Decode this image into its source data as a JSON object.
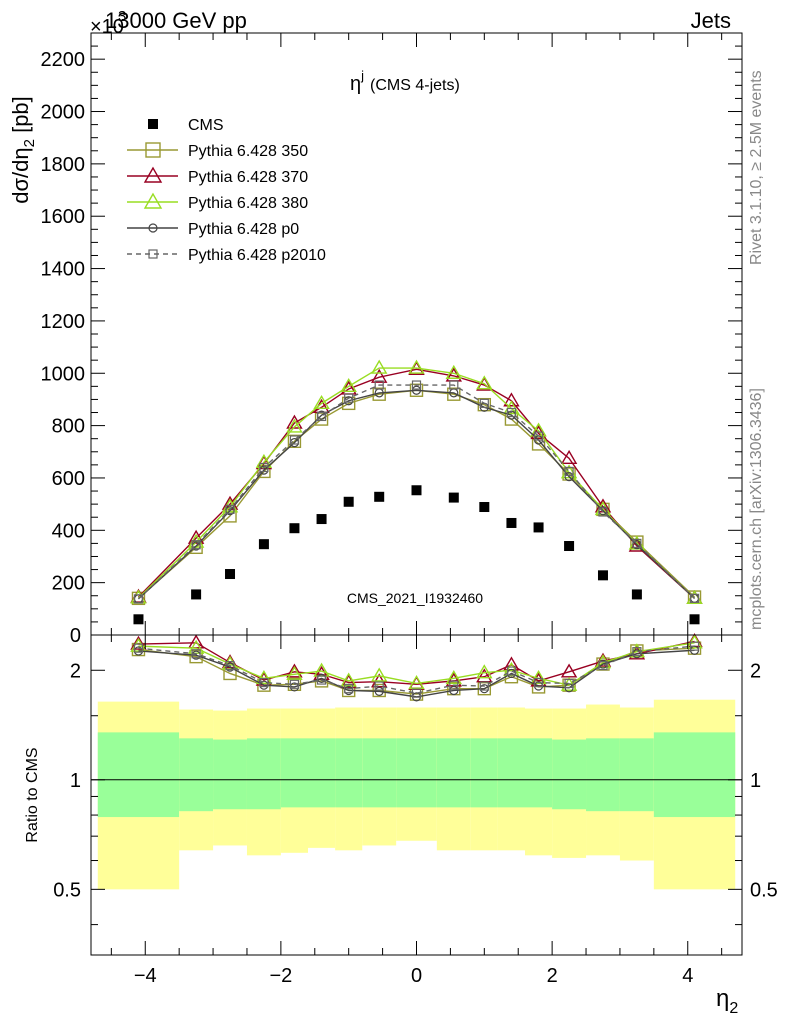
{
  "header": {
    "left": "13000 GeV pp",
    "right": "Jets",
    "exponent_prefix": "×10",
    "exponent_power": "3"
  },
  "side_text": {
    "top": "Rivet 3.1.10, ≥ 2.5M events",
    "bottom": "mcplots.cern.ch [arXiv:1306.3436]"
  },
  "watermark": "CMS_2021_I1932460",
  "colors": {
    "cms": "#000000",
    "p350": "#999933",
    "p370": "#990022",
    "p380": "#99dd22",
    "p0": "#444444",
    "p2010": "#666666",
    "band_inner": "#99ff99",
    "band_outer": "#ffff99"
  },
  "chart_data": [
    {
      "type": "scatter",
      "panel": "main",
      "title_main": "η",
      "title_sup": "j",
      "title_rest": "(CMS 4-jets)",
      "xlabel": "",
      "ylabel_parts": [
        "dσ/dη",
        "2",
        " [pb]"
      ],
      "ylabel": "dσ/dη2 [pb]",
      "xlim": [
        -4.8,
        4.8
      ],
      "ylim": [
        0,
        2300
      ],
      "y_scale_note": "×10^3",
      "yticks": [
        200,
        400,
        600,
        800,
        1000,
        1200,
        1400,
        1600,
        1800,
        2000,
        2200
      ],
      "ytick_labels": [
        "200",
        "400",
        "600",
        "800",
        "1000",
        "1200",
        "1400",
        "1600",
        "1800",
        "2000",
        "2200"
      ],
      "y0_label": "0",
      "x_bins": [
        -4.7,
        -3.5,
        -3.0,
        -2.5,
        -2.0,
        -1.6,
        -1.2,
        -0.8,
        -0.3,
        0.3,
        0.8,
        1.2,
        1.6,
        2.0,
        2.5,
        3.0,
        3.5,
        4.7
      ],
      "x": [
        -4.1,
        -3.25,
        -2.75,
        -2.25,
        -1.8,
        -1.4,
        -1.0,
        -0.55,
        0.0,
        0.55,
        1.0,
        1.4,
        1.8,
        2.25,
        2.75,
        3.25,
        4.1
      ],
      "legend_position": "top-left",
      "series": [
        {
          "name": "CMS",
          "key": "cms",
          "marker": "filled-square",
          "line": "none",
          "values": [
            60,
            155,
            233,
            347,
            408,
            443,
            509,
            528,
            553,
            525,
            489,
            428,
            411,
            340,
            228,
            155,
            60
          ]
        },
        {
          "name": "Pythia 6.428 350",
          "key": "p350",
          "marker": "open-square",
          "line": "solid",
          "values": [
            140,
            335,
            455,
            625,
            740,
            825,
            885,
            920,
            935,
            920,
            880,
            825,
            730,
            615,
            480,
            355,
            145
          ]
        },
        {
          "name": "Pythia 6.428 370",
          "key": "p370",
          "marker": "open-triangle",
          "line": "solid",
          "values": [
            145,
            370,
            500,
            655,
            810,
            870,
            940,
            985,
            1015,
            990,
            955,
            895,
            770,
            675,
            490,
            340,
            140
          ]
        },
        {
          "name": "Pythia 6.428 380",
          "key": "p380",
          "marker": "open-triangle",
          "line": "solid",
          "values": [
            142,
            355,
            490,
            660,
            795,
            885,
            950,
            1020,
            1020,
            1000,
            960,
            865,
            780,
            620,
            480,
            348,
            140
          ]
        },
        {
          "name": "Pythia 6.428 p0",
          "key": "p0",
          "marker": "open-circle",
          "line": "solid",
          "values": [
            138,
            340,
            475,
            630,
            735,
            840,
            895,
            925,
            935,
            925,
            870,
            840,
            745,
            605,
            475,
            345,
            140
          ]
        },
        {
          "name": "Pythia 6.428 p2010",
          "key": "p2010",
          "marker": "open-square-small",
          "line": "dashed",
          "values": [
            138,
            345,
            480,
            640,
            745,
            835,
            905,
            955,
            955,
            955,
            885,
            850,
            760,
            625,
            470,
            350,
            140
          ]
        }
      ]
    },
    {
      "type": "line",
      "panel": "ratio",
      "xlabel": "η",
      "xlabel_sub": "2",
      "ylabel": "Ratio to CMS",
      "xlim": [
        -4.8,
        4.8
      ],
      "ylim": [
        0.33,
        2.5
      ],
      "yticks": [
        0.5,
        1,
        2
      ],
      "ytick_labels": [
        "0.5",
        "1",
        "2"
      ],
      "xticks": [
        -4,
        -2,
        0,
        2,
        4
      ],
      "xtick_labels": [
        "−4",
        "−2",
        "0",
        "2",
        "4"
      ],
      "reference_line": 1,
      "bands": {
        "edges": [
          -4.7,
          -3.5,
          -3.0,
          -2.5,
          -2.0,
          -1.6,
          -1.2,
          -0.8,
          -0.3,
          0.3,
          0.8,
          1.2,
          1.6,
          2.0,
          2.5,
          3.0,
          3.5,
          4.7
        ],
        "inner_low": [
          0.79,
          0.82,
          0.83,
          0.83,
          0.84,
          0.84,
          0.84,
          0.84,
          0.84,
          0.84,
          0.84,
          0.84,
          0.84,
          0.83,
          0.82,
          0.82,
          0.79
        ],
        "inner_high": [
          1.35,
          1.3,
          1.29,
          1.3,
          1.3,
          1.3,
          1.3,
          1.3,
          1.3,
          1.3,
          1.3,
          1.3,
          1.3,
          1.29,
          1.3,
          1.3,
          1.35
        ],
        "outer_low": [
          0.5,
          0.64,
          0.66,
          0.62,
          0.63,
          0.65,
          0.64,
          0.66,
          0.68,
          0.64,
          0.64,
          0.64,
          0.62,
          0.61,
          0.62,
          0.6,
          0.5
        ],
        "outer_high": [
          1.64,
          1.56,
          1.55,
          1.57,
          1.57,
          1.57,
          1.58,
          1.58,
          1.58,
          1.58,
          1.58,
          1.58,
          1.57,
          1.57,
          1.61,
          1.58,
          1.66
        ]
      },
      "x": [
        -4.1,
        -3.25,
        -2.75,
        -2.25,
        -1.8,
        -1.4,
        -1.0,
        -0.55,
        0.0,
        0.55,
        1.0,
        1.4,
        1.8,
        2.25,
        2.75,
        3.25,
        4.1
      ],
      "series": [
        {
          "name": "Pythia 6.428 350",
          "key": "p350",
          "values": [
            2.28,
            2.18,
            1.96,
            1.82,
            1.83,
            1.87,
            1.76,
            1.76,
            1.72,
            1.78,
            1.78,
            1.92,
            1.8,
            1.82,
            2.08,
            2.26,
            2.3
          ]
        },
        {
          "name": "Pythia 6.428 370",
          "key": "p370",
          "values": [
            2.36,
            2.38,
            2.1,
            1.88,
            1.98,
            1.95,
            1.85,
            1.86,
            1.83,
            1.87,
            1.92,
            2.07,
            1.87,
            1.98,
            2.12,
            2.22,
            2.4
          ]
        },
        {
          "name": "Pythia 6.428 380",
          "key": "p380",
          "values": [
            2.33,
            2.3,
            2.08,
            1.9,
            1.95,
            1.99,
            1.87,
            1.93,
            1.84,
            1.9,
            1.97,
            2.0,
            1.9,
            1.82,
            2.1,
            2.25,
            2.38
          ]
        },
        {
          "name": "Pythia 6.428 p0",
          "key": "p0",
          "values": [
            2.26,
            2.2,
            2.04,
            1.82,
            1.8,
            1.9,
            1.76,
            1.75,
            1.69,
            1.76,
            1.78,
            1.96,
            1.81,
            1.79,
            2.08,
            2.22,
            2.27
          ]
        },
        {
          "name": "Pythia 6.428 p2010",
          "key": "p2010",
          "values": [
            2.3,
            2.22,
            2.06,
            1.85,
            1.83,
            1.88,
            1.78,
            1.81,
            1.73,
            1.82,
            1.81,
            1.99,
            1.85,
            1.84,
            2.06,
            2.25,
            2.33
          ]
        }
      ]
    }
  ]
}
